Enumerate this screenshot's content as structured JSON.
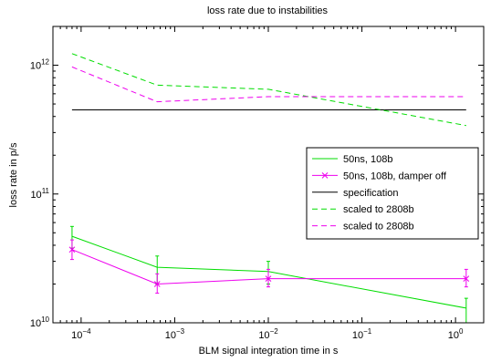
{
  "chart_data": {
    "type": "line",
    "title": "loss rate due to instabilities",
    "xlabel": "BLM signal integration time in s",
    "ylabel": "loss rate in p/s",
    "xscale": "log",
    "yscale": "log",
    "xlim": [
      5e-05,
      2
    ],
    "ylim": [
      10000000000,
      2000000000000
    ],
    "x_ticks": [
      {
        "value": 0.0001,
        "base": "10",
        "exp": "−4"
      },
      {
        "value": 0.001,
        "base": "10",
        "exp": "−3"
      },
      {
        "value": 0.01,
        "base": "10",
        "exp": "−2"
      },
      {
        "value": 0.1,
        "base": "10",
        "exp": "−1"
      },
      {
        "value": 1,
        "base": "10",
        "exp": "0"
      }
    ],
    "y_ticks": [
      {
        "value": 10000000000,
        "base": "10",
        "exp": "10"
      },
      {
        "value": 100000000000,
        "base": "10",
        "exp": "11"
      },
      {
        "value": 1000000000000,
        "base": "10",
        "exp": "12"
      }
    ],
    "grid": false,
    "legend_position": "right",
    "series": [
      {
        "name": "50ns, 108b",
        "color": "#00dd00",
        "dash": "solid",
        "marker": "none",
        "x": [
          8e-05,
          0.00065,
          0.01,
          1.3
        ],
        "y": [
          47000000000,
          27000000000,
          25000000000,
          13000000000
        ],
        "yerr_low": [
          38000000000,
          20000000000,
          20000000000,
          10000000000
        ],
        "yerr_high": [
          56000000000,
          33000000000,
          30000000000,
          15500000000
        ]
      },
      {
        "name": "50ns, 108b, damper off",
        "color": "#ee00ee",
        "dash": "solid",
        "marker": "x",
        "x": [
          8e-05,
          0.00065,
          0.01,
          1.3
        ],
        "y": [
          37000000000,
          20000000000,
          22000000000,
          22000000000
        ],
        "yerr_low": [
          31000000000,
          17000000000,
          19000000000,
          19000000000
        ],
        "yerr_high": [
          44000000000,
          24000000000,
          26000000000,
          26000000000
        ]
      },
      {
        "name": "specification",
        "color": "#000000",
        "dash": "solid",
        "marker": "none",
        "x": [
          8e-05,
          1.3
        ],
        "y": [
          450000000000,
          450000000000
        ]
      },
      {
        "name": "scaled to 2808b",
        "color": "#00dd00",
        "dash": "dashed",
        "marker": "none",
        "x": [
          8e-05,
          0.00065,
          0.01,
          1.3
        ],
        "y": [
          1230000000000,
          700000000000,
          650000000000,
          340000000000
        ]
      },
      {
        "name": "scaled to 2808b",
        "color": "#ee00ee",
        "dash": "dashed",
        "marker": "none",
        "x": [
          8e-05,
          0.00065,
          0.01,
          1.3
        ],
        "y": [
          970000000000,
          520000000000,
          570000000000,
          570000000000
        ]
      }
    ]
  }
}
